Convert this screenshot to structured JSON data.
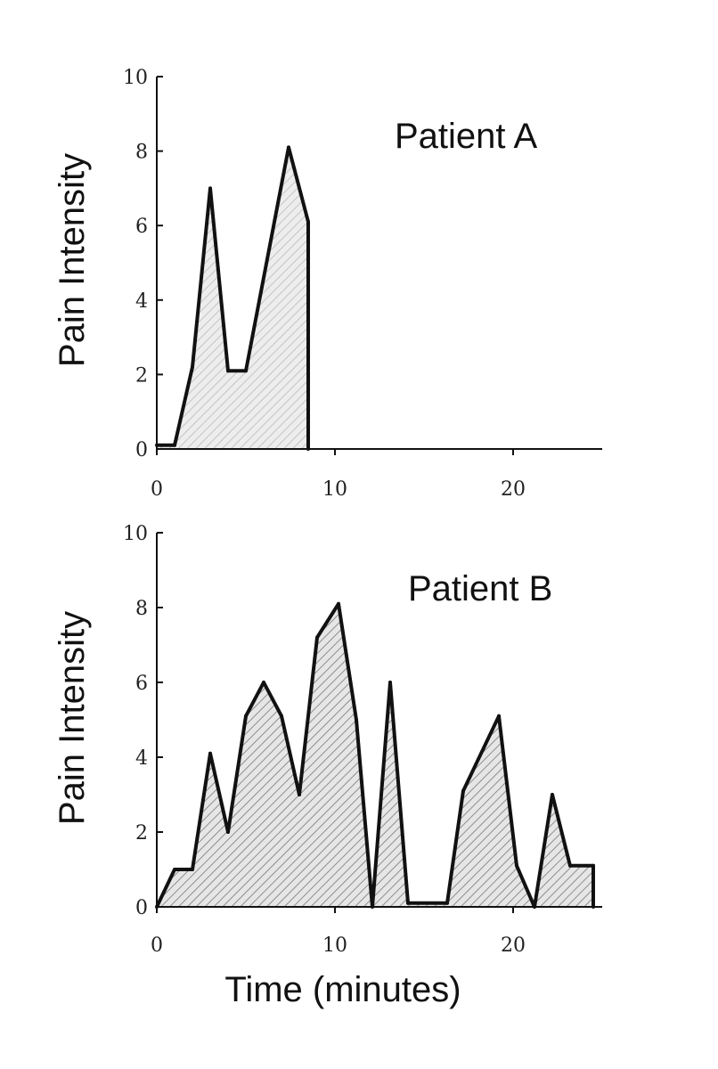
{
  "chart_data": [
    {
      "type": "area",
      "title": "Patient A",
      "ylabel": "Pain Intensity",
      "xlabel": "",
      "xlim": [
        0,
        25
      ],
      "ylim": [
        0,
        10
      ],
      "xticks": [
        0,
        10,
        20
      ],
      "yticks": [
        0,
        2,
        4,
        6,
        8,
        10
      ],
      "grid": false,
      "fill_color": "#c9c9c9",
      "series": [
        {
          "x": [
            0,
            1,
            2,
            3,
            4,
            5,
            7.4,
            8.5,
            8.5
          ],
          "y": [
            0.1,
            0.1,
            2.2,
            7.0,
            2.1,
            2.1,
            8.1,
            6.1,
            0
          ]
        }
      ]
    },
    {
      "type": "area",
      "title": "Patient B",
      "ylabel": "Pain Intensity",
      "xlabel": "Time (minutes)",
      "xlim": [
        0,
        25
      ],
      "ylim": [
        0,
        10
      ],
      "xticks": [
        0,
        10,
        20
      ],
      "yticks": [
        0,
        2,
        4,
        6,
        8,
        10
      ],
      "grid": false,
      "fill_color": "#9a9a9a",
      "series": [
        {
          "x": [
            0,
            1,
            2,
            3,
            4,
            5,
            6,
            7,
            8,
            9,
            10.2,
            11.2,
            12.1,
            13.1,
            14.1,
            16.3,
            17.2,
            19.2,
            20.2,
            21.2,
            22.2,
            23.2,
            24.5,
            24.5
          ],
          "y": [
            0,
            1,
            1,
            4.1,
            2.0,
            5.1,
            6.0,
            5.1,
            3.0,
            7.2,
            8.1,
            5.0,
            0,
            6.0,
            0.1,
            0.1,
            3.1,
            5.1,
            1.1,
            0,
            3.0,
            1.1,
            1.1,
            0
          ]
        }
      ]
    }
  ]
}
